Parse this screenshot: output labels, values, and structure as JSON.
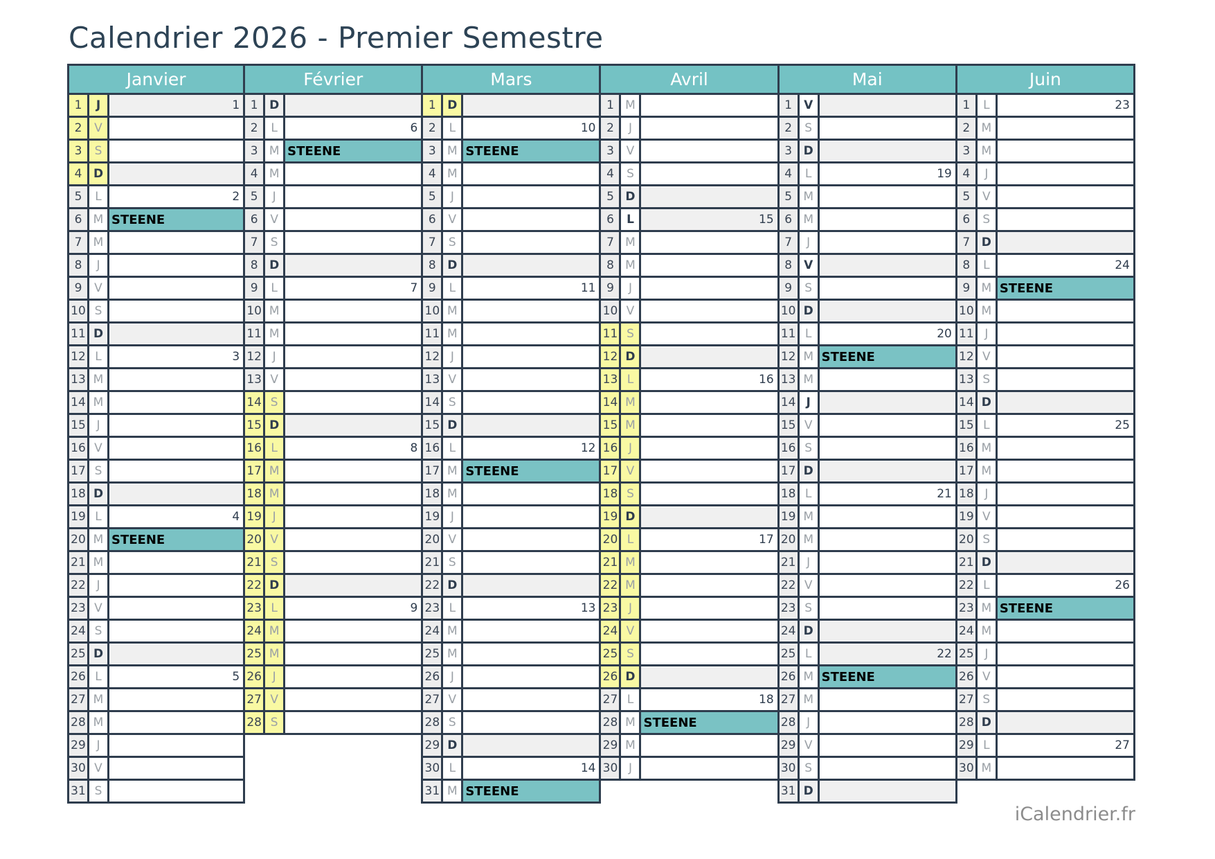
{
  "title": "Calendrier 2026 - Premier Semestre",
  "footer": "iCalendrier.fr",
  "event_label": "STEENE",
  "colors": {
    "header_teal": "#74c2c4",
    "event_teal": "#7ac2c4",
    "holiday_yellow": "#f9f9a3",
    "sunday_gray": "#f0f0f0",
    "numcell_gray": "#ededed",
    "border_navy": "#2f3d4e",
    "title_navy": "#2d4355",
    "letter_gray": "#9aa0a6",
    "number_navy": "#3a4554"
  },
  "months": [
    {
      "name": "Janvier",
      "days": [
        {
          "n": 1,
          "l": "J",
          "y": 1,
          "g": 1,
          "k": 1,
          "w": "1"
        },
        {
          "n": 2,
          "l": "V",
          "y": 1
        },
        {
          "n": 3,
          "l": "S",
          "y": 1
        },
        {
          "n": 4,
          "l": "D",
          "y": 1,
          "g": 1,
          "k": 1
        },
        {
          "n": 5,
          "l": "L",
          "w": "2"
        },
        {
          "n": 6,
          "l": "M",
          "s": 1
        },
        {
          "n": 7,
          "l": "M"
        },
        {
          "n": 8,
          "l": "J"
        },
        {
          "n": 9,
          "l": "V"
        },
        {
          "n": 10,
          "l": "S"
        },
        {
          "n": 11,
          "l": "D",
          "g": 1,
          "k": 1
        },
        {
          "n": 12,
          "l": "L",
          "w": "3"
        },
        {
          "n": 13,
          "l": "M"
        },
        {
          "n": 14,
          "l": "M"
        },
        {
          "n": 15,
          "l": "J"
        },
        {
          "n": 16,
          "l": "V"
        },
        {
          "n": 17,
          "l": "S"
        },
        {
          "n": 18,
          "l": "D",
          "g": 1,
          "k": 1
        },
        {
          "n": 19,
          "l": "L",
          "w": "4"
        },
        {
          "n": 20,
          "l": "M",
          "s": 1
        },
        {
          "n": 21,
          "l": "M"
        },
        {
          "n": 22,
          "l": "J"
        },
        {
          "n": 23,
          "l": "V"
        },
        {
          "n": 24,
          "l": "S"
        },
        {
          "n": 25,
          "l": "D",
          "g": 1,
          "k": 1
        },
        {
          "n": 26,
          "l": "L",
          "w": "5"
        },
        {
          "n": 27,
          "l": "M"
        },
        {
          "n": 28,
          "l": "M"
        },
        {
          "n": 29,
          "l": "J"
        },
        {
          "n": 30,
          "l": "V"
        },
        {
          "n": 31,
          "l": "S"
        }
      ]
    },
    {
      "name": "Février",
      "days": [
        {
          "n": 1,
          "l": "D",
          "g": 1,
          "k": 1
        },
        {
          "n": 2,
          "l": "L",
          "w": "6"
        },
        {
          "n": 3,
          "l": "M",
          "s": 1
        },
        {
          "n": 4,
          "l": "M"
        },
        {
          "n": 5,
          "l": "J"
        },
        {
          "n": 6,
          "l": "V"
        },
        {
          "n": 7,
          "l": "S"
        },
        {
          "n": 8,
          "l": "D",
          "g": 1,
          "k": 1
        },
        {
          "n": 9,
          "l": "L",
          "w": "7"
        },
        {
          "n": 10,
          "l": "M"
        },
        {
          "n": 11,
          "l": "M"
        },
        {
          "n": 12,
          "l": "J"
        },
        {
          "n": 13,
          "l": "V"
        },
        {
          "n": 14,
          "l": "S",
          "y": 1
        },
        {
          "n": 15,
          "l": "D",
          "y": 1,
          "g": 1,
          "k": 1
        },
        {
          "n": 16,
          "l": "L",
          "y": 1,
          "w": "8"
        },
        {
          "n": 17,
          "l": "M",
          "y": 1
        },
        {
          "n": 18,
          "l": "M",
          "y": 1
        },
        {
          "n": 19,
          "l": "J",
          "y": 1
        },
        {
          "n": 20,
          "l": "V",
          "y": 1
        },
        {
          "n": 21,
          "l": "S",
          "y": 1
        },
        {
          "n": 22,
          "l": "D",
          "y": 1,
          "g": 1,
          "k": 1
        },
        {
          "n": 23,
          "l": "L",
          "y": 1,
          "w": "9"
        },
        {
          "n": 24,
          "l": "M",
          "y": 1
        },
        {
          "n": 25,
          "l": "M",
          "y": 1
        },
        {
          "n": 26,
          "l": "J",
          "y": 1
        },
        {
          "n": 27,
          "l": "V",
          "y": 1
        },
        {
          "n": 28,
          "l": "S",
          "y": 1
        }
      ]
    },
    {
      "name": "Mars",
      "days": [
        {
          "n": 1,
          "l": "D",
          "y": 1,
          "g": 1,
          "k": 1
        },
        {
          "n": 2,
          "l": "L",
          "w": "10"
        },
        {
          "n": 3,
          "l": "M",
          "s": 1
        },
        {
          "n": 4,
          "l": "M"
        },
        {
          "n": 5,
          "l": "J"
        },
        {
          "n": 6,
          "l": "V"
        },
        {
          "n": 7,
          "l": "S"
        },
        {
          "n": 8,
          "l": "D",
          "g": 1,
          "k": 1
        },
        {
          "n": 9,
          "l": "L",
          "w": "11"
        },
        {
          "n": 10,
          "l": "M"
        },
        {
          "n": 11,
          "l": "M"
        },
        {
          "n": 12,
          "l": "J"
        },
        {
          "n": 13,
          "l": "V"
        },
        {
          "n": 14,
          "l": "S"
        },
        {
          "n": 15,
          "l": "D",
          "g": 1,
          "k": 1
        },
        {
          "n": 16,
          "l": "L",
          "w": "12"
        },
        {
          "n": 17,
          "l": "M",
          "s": 1
        },
        {
          "n": 18,
          "l": "M"
        },
        {
          "n": 19,
          "l": "J"
        },
        {
          "n": 20,
          "l": "V"
        },
        {
          "n": 21,
          "l": "S"
        },
        {
          "n": 22,
          "l": "D",
          "g": 1,
          "k": 1
        },
        {
          "n": 23,
          "l": "L",
          "w": "13"
        },
        {
          "n": 24,
          "l": "M"
        },
        {
          "n": 25,
          "l": "M"
        },
        {
          "n": 26,
          "l": "J"
        },
        {
          "n": 27,
          "l": "V"
        },
        {
          "n": 28,
          "l": "S"
        },
        {
          "n": 29,
          "l": "D",
          "g": 1,
          "k": 1
        },
        {
          "n": 30,
          "l": "L",
          "w": "14"
        },
        {
          "n": 31,
          "l": "M",
          "s": 1
        }
      ]
    },
    {
      "name": "Avril",
      "days": [
        {
          "n": 1,
          "l": "M"
        },
        {
          "n": 2,
          "l": "J"
        },
        {
          "n": 3,
          "l": "V"
        },
        {
          "n": 4,
          "l": "S"
        },
        {
          "n": 5,
          "l": "D",
          "g": 1,
          "k": 1
        },
        {
          "n": 6,
          "l": "L",
          "g": 1,
          "k": 1,
          "w": "15"
        },
        {
          "n": 7,
          "l": "M"
        },
        {
          "n": 8,
          "l": "M"
        },
        {
          "n": 9,
          "l": "J"
        },
        {
          "n": 10,
          "l": "V"
        },
        {
          "n": 11,
          "l": "S",
          "y": 1
        },
        {
          "n": 12,
          "l": "D",
          "y": 1,
          "g": 1,
          "k": 1
        },
        {
          "n": 13,
          "l": "L",
          "y": 1,
          "w": "16"
        },
        {
          "n": 14,
          "l": "M",
          "y": 1
        },
        {
          "n": 15,
          "l": "M",
          "y": 1
        },
        {
          "n": 16,
          "l": "J",
          "y": 1
        },
        {
          "n": 17,
          "l": "V",
          "y": 1
        },
        {
          "n": 18,
          "l": "S",
          "y": 1
        },
        {
          "n": 19,
          "l": "D",
          "y": 1,
          "g": 1,
          "k": 1
        },
        {
          "n": 20,
          "l": "L",
          "y": 1,
          "w": "17"
        },
        {
          "n": 21,
          "l": "M",
          "y": 1
        },
        {
          "n": 22,
          "l": "M",
          "y": 1
        },
        {
          "n": 23,
          "l": "J",
          "y": 1
        },
        {
          "n": 24,
          "l": "V",
          "y": 1
        },
        {
          "n": 25,
          "l": "S",
          "y": 1
        },
        {
          "n": 26,
          "l": "D",
          "y": 1,
          "g": 1,
          "k": 1
        },
        {
          "n": 27,
          "l": "L",
          "w": "18"
        },
        {
          "n": 28,
          "l": "M",
          "s": 1
        },
        {
          "n": 29,
          "l": "M"
        },
        {
          "n": 30,
          "l": "J"
        }
      ]
    },
    {
      "name": "Mai",
      "days": [
        {
          "n": 1,
          "l": "V",
          "g": 1,
          "k": 1
        },
        {
          "n": 2,
          "l": "S"
        },
        {
          "n": 3,
          "l": "D",
          "g": 1,
          "k": 1
        },
        {
          "n": 4,
          "l": "L",
          "w": "19"
        },
        {
          "n": 5,
          "l": "M"
        },
        {
          "n": 6,
          "l": "M"
        },
        {
          "n": 7,
          "l": "J"
        },
        {
          "n": 8,
          "l": "V",
          "g": 1,
          "k": 1
        },
        {
          "n": 9,
          "l": "S"
        },
        {
          "n": 10,
          "l": "D",
          "g": 1,
          "k": 1
        },
        {
          "n": 11,
          "l": "L",
          "w": "20"
        },
        {
          "n": 12,
          "l": "M",
          "s": 1
        },
        {
          "n": 13,
          "l": "M"
        },
        {
          "n": 14,
          "l": "J",
          "g": 1,
          "k": 1
        },
        {
          "n": 15,
          "l": "V"
        },
        {
          "n": 16,
          "l": "S"
        },
        {
          "n": 17,
          "l": "D",
          "g": 1,
          "k": 1
        },
        {
          "n": 18,
          "l": "L",
          "w": "21"
        },
        {
          "n": 19,
          "l": "M"
        },
        {
          "n": 20,
          "l": "M"
        },
        {
          "n": 21,
          "l": "J"
        },
        {
          "n": 22,
          "l": "V"
        },
        {
          "n": 23,
          "l": "S"
        },
        {
          "n": 24,
          "l": "D",
          "g": 1,
          "k": 1
        },
        {
          "n": 25,
          "l": "L",
          "g": 1,
          "w": "22"
        },
        {
          "n": 26,
          "l": "M",
          "s": 1
        },
        {
          "n": 27,
          "l": "M"
        },
        {
          "n": 28,
          "l": "J"
        },
        {
          "n": 29,
          "l": "V"
        },
        {
          "n": 30,
          "l": "S"
        },
        {
          "n": 31,
          "l": "D",
          "g": 1,
          "k": 1
        }
      ]
    },
    {
      "name": "Juin",
      "days": [
        {
          "n": 1,
          "l": "L",
          "w": "23"
        },
        {
          "n": 2,
          "l": "M"
        },
        {
          "n": 3,
          "l": "M"
        },
        {
          "n": 4,
          "l": "J"
        },
        {
          "n": 5,
          "l": "V"
        },
        {
          "n": 6,
          "l": "S"
        },
        {
          "n": 7,
          "l": "D",
          "g": 1,
          "k": 1
        },
        {
          "n": 8,
          "l": "L",
          "w": "24"
        },
        {
          "n": 9,
          "l": "M",
          "s": 1
        },
        {
          "n": 10,
          "l": "M"
        },
        {
          "n": 11,
          "l": "J"
        },
        {
          "n": 12,
          "l": "V"
        },
        {
          "n": 13,
          "l": "S"
        },
        {
          "n": 14,
          "l": "D",
          "g": 1,
          "k": 1
        },
        {
          "n": 15,
          "l": "L",
          "w": "25"
        },
        {
          "n": 16,
          "l": "M"
        },
        {
          "n": 17,
          "l": "M"
        },
        {
          "n": 18,
          "l": "J"
        },
        {
          "n": 19,
          "l": "V"
        },
        {
          "n": 20,
          "l": "S"
        },
        {
          "n": 21,
          "l": "D",
          "g": 1,
          "k": 1
        },
        {
          "n": 22,
          "l": "L",
          "w": "26"
        },
        {
          "n": 23,
          "l": "M",
          "s": 1
        },
        {
          "n": 24,
          "l": "M"
        },
        {
          "n": 25,
          "l": "J"
        },
        {
          "n": 26,
          "l": "V"
        },
        {
          "n": 27,
          "l": "S"
        },
        {
          "n": 28,
          "l": "D",
          "g": 1,
          "k": 1
        },
        {
          "n": 29,
          "l": "L",
          "w": "27"
        },
        {
          "n": 30,
          "l": "M"
        }
      ]
    }
  ]
}
